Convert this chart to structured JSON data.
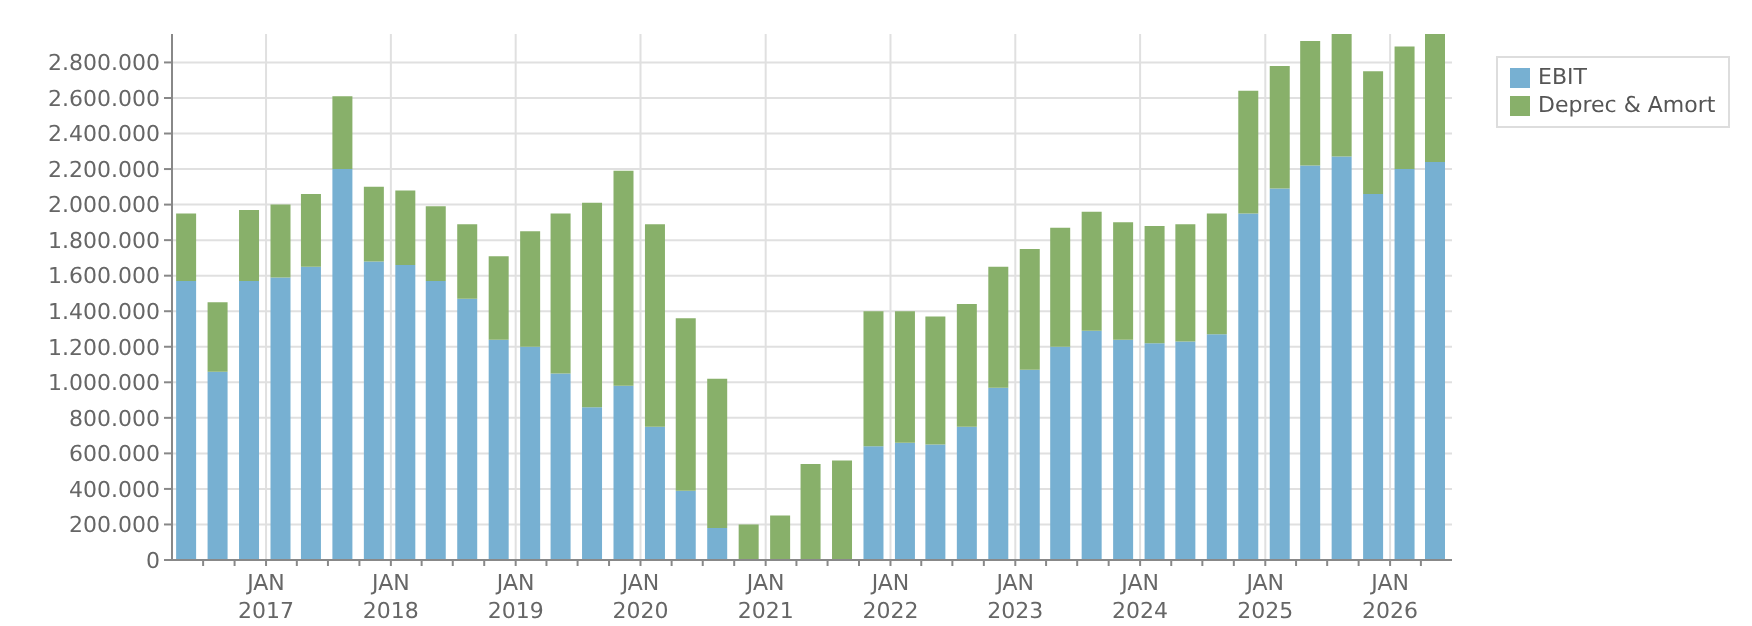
{
  "chart_data": {
    "type": "bar",
    "stacked": true,
    "grid": true,
    "legend": "top right",
    "x": [
      "2016-05-10",
      "2016-08-10",
      "2016-11-10",
      "2017-02-10",
      "2017-05-10",
      "2017-08-10",
      "2017-11-10",
      "2018-02-10",
      "2018-05-10",
      "2018-08-10",
      "2018-11-10",
      "2019-02-10",
      "2019-05-10",
      "2019-08-10",
      "2019-11-10",
      "2020-02-10",
      "2020-05-10",
      "2020-08-10",
      "2020-11-10",
      "2021-02-10",
      "2021-05-10",
      "2021-08-10",
      "2021-11-10",
      "2022-02-10",
      "2022-05-10",
      "2022-08-10",
      "2022-11-10",
      "2023-02-10",
      "2023-05-10",
      "2023-08-10",
      "2023-11-10",
      "2024-02-10",
      "2024-05-10",
      "2024-08-10",
      "2024-11-10",
      "2025-02-10",
      "2025-05-10",
      "2025-08-10",
      "2025-11-10",
      "2026-02-10",
      "2026-05-10"
    ],
    "series": [
      {
        "name": "EBIT",
        "color": "#77b0d2",
        "values": [
          1570000,
          1060000,
          1570000,
          1590000,
          1650000,
          2200000,
          1680000,
          1660000,
          1570000,
          1470000,
          1240000,
          1200000,
          1050000,
          860000,
          980000,
          750000,
          390000,
          180000,
          0,
          0,
          0,
          0,
          640000,
          660000,
          650000,
          750000,
          970000,
          1070000,
          1200000,
          1290000,
          1240000,
          1220000,
          1230000,
          1270000,
          1950000,
          2090000,
          2220000,
          2270000,
          2060000,
          2200000,
          2240000
        ]
      },
      {
        "name": "Deprec & Amort",
        "color": "#88b06a",
        "values": [
          380000,
          390000,
          400000,
          410000,
          410000,
          410000,
          420000,
          420000,
          420000,
          420000,
          470000,
          650000,
          900000,
          1150000,
          1210000,
          1140000,
          970000,
          840000,
          200000,
          250000,
          540000,
          560000,
          760000,
          740000,
          720000,
          690000,
          680000,
          680000,
          670000,
          670000,
          660000,
          660000,
          660000,
          680000,
          690000,
          690000,
          700000,
          690000,
          690000,
          690000,
          720000
        ]
      }
    ],
    "xlim": [
      "2016-04-01",
      "2026-07-01"
    ],
    "xticks": [
      {
        "value": "2016-07-01",
        "label": null
      },
      {
        "value": "2016-10-01",
        "label": null
      },
      {
        "value": "2017-01-01",
        "label": "JAN 2017"
      },
      {
        "value": "2017-04-01",
        "label": null
      },
      {
        "value": "2017-07-01",
        "label": null
      },
      {
        "value": "2017-10-01",
        "label": null
      },
      {
        "value": "2018-01-01",
        "label": "JAN 2018"
      },
      {
        "value": "2018-04-01",
        "label": null
      },
      {
        "value": "2018-07-01",
        "label": null
      },
      {
        "value": "2018-10-01",
        "label": null
      },
      {
        "value": "2019-01-01",
        "label": "JAN 2019"
      },
      {
        "value": "2019-04-01",
        "label": null
      },
      {
        "value": "2019-07-01",
        "label": null
      },
      {
        "value": "2019-10-01",
        "label": null
      },
      {
        "value": "2020-01-01",
        "label": "JAN 2020"
      },
      {
        "value": "2020-04-01",
        "label": null
      },
      {
        "value": "2020-07-01",
        "label": null
      },
      {
        "value": "2020-10-01",
        "label": null
      },
      {
        "value": "2021-01-01",
        "label": "JAN 2021"
      },
      {
        "value": "2021-04-01",
        "label": null
      },
      {
        "value": "2021-07-01",
        "label": null
      },
      {
        "value": "2021-10-01",
        "label": null
      },
      {
        "value": "2022-01-01",
        "label": "JAN 2022"
      },
      {
        "value": "2022-04-01",
        "label": null
      },
      {
        "value": "2022-07-01",
        "label": null
      },
      {
        "value": "2022-10-01",
        "label": null
      },
      {
        "value": "2023-01-01",
        "label": "JAN 2023"
      },
      {
        "value": "2023-04-01",
        "label": null
      },
      {
        "value": "2023-07-01",
        "label": null
      },
      {
        "value": "2023-10-01",
        "label": null
      },
      {
        "value": "2024-01-01",
        "label": "JAN 2024"
      },
      {
        "value": "2024-04-01",
        "label": null
      },
      {
        "value": "2024-07-01",
        "label": null
      },
      {
        "value": "2024-10-01",
        "label": null
      },
      {
        "value": "2025-01-01",
        "label": "JAN 2025"
      },
      {
        "value": "2025-04-01",
        "label": null
      },
      {
        "value": "2025-07-01",
        "label": null
      },
      {
        "value": "2025-10-01",
        "label": null
      },
      {
        "value": "2026-01-01",
        "label": "JAN 2026"
      },
      {
        "value": "2026-04-01",
        "label": null
      }
    ],
    "ylim": [
      0,
      2960000
    ],
    "yticks": [
      0,
      {
        "value": 200000,
        "label": "200.000"
      },
      {
        "value": 400000,
        "label": "400.000"
      },
      {
        "value": 600000,
        "label": "600.000"
      },
      {
        "value": 800000,
        "label": "800.000"
      },
      {
        "value": 1000000,
        "label": "1.000.000"
      },
      {
        "value": 1200000,
        "label": "1.200.000"
      },
      {
        "value": 1400000,
        "label": "1.400.000"
      },
      {
        "value": 1600000,
        "label": "1.600.000"
      },
      {
        "value": 1800000,
        "label": "1.800.000"
      },
      {
        "value": 2000000,
        "label": "2.000.000"
      },
      {
        "value": 2200000,
        "label": "2.200.000"
      },
      {
        "value": 2400000,
        "label": "2.400.000"
      },
      {
        "value": 2600000,
        "label": "2.600.000"
      },
      {
        "value": 2800000,
        "label": "2.800.000"
      }
    ]
  }
}
